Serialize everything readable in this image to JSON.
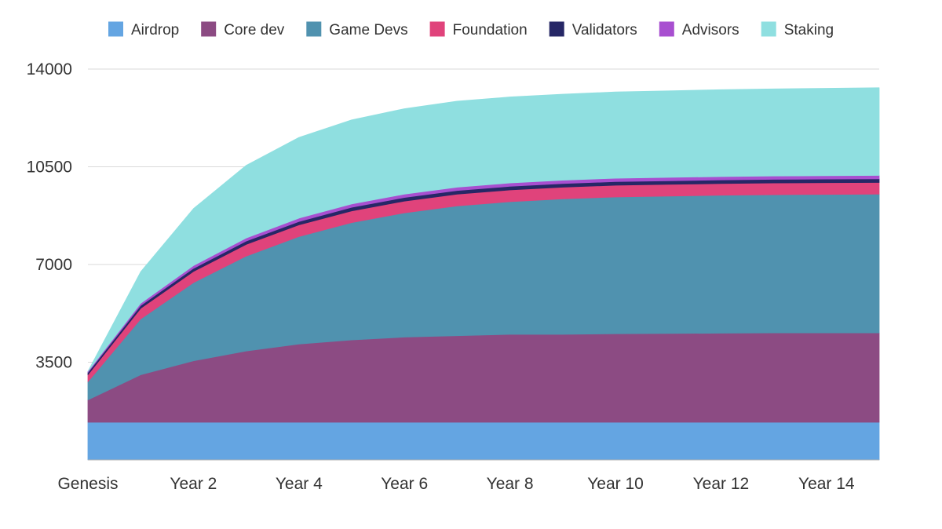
{
  "chart_data": {
    "type": "area",
    "stacked": true,
    "title": "",
    "xlabel": "",
    "ylabel": "",
    "ylim": [
      0,
      14000
    ],
    "yticks": [
      3500,
      7000,
      10500,
      14000
    ],
    "xtick_labels": [
      "Genesis",
      "Year 2",
      "Year 4",
      "Year 6",
      "Year 8",
      "Year 10",
      "Year 12",
      "Year 14"
    ],
    "x": [
      "Genesis",
      "Year 1",
      "Year 2",
      "Year 3",
      "Year 4",
      "Year 5",
      "Year 6",
      "Year 7",
      "Year 8",
      "Year 9",
      "Year 10",
      "Year 11",
      "Year 12",
      "Year 13",
      "Year 14",
      "Year 15"
    ],
    "grid": true,
    "legend_position": "top",
    "series": [
      {
        "name": "Airdrop",
        "color": "#64a5e2",
        "values": [
          1350,
          1350,
          1350,
          1350,
          1350,
          1350,
          1350,
          1350,
          1350,
          1350,
          1350,
          1350,
          1350,
          1350,
          1350,
          1350
        ]
      },
      {
        "name": "Core dev",
        "color": "#8c4b83",
        "values": [
          800,
          1700,
          2200,
          2550,
          2800,
          2950,
          3050,
          3100,
          3150,
          3150,
          3170,
          3180,
          3190,
          3200,
          3200,
          3200
        ]
      },
      {
        "name": "Game Devs",
        "color": "#5092af",
        "values": [
          650,
          2000,
          2800,
          3400,
          3850,
          4200,
          4450,
          4650,
          4750,
          4850,
          4900,
          4920,
          4940,
          4950,
          4960,
          4970
        ]
      },
      {
        "name": "Foundation",
        "color": "#e0437b",
        "values": [
          250,
          380,
          400,
          420,
          420,
          420,
          420,
          420,
          420,
          420,
          420,
          420,
          420,
          420,
          420,
          420
        ]
      },
      {
        "name": "Validators",
        "color": "#262766",
        "values": [
          80,
          100,
          110,
          120,
          120,
          130,
          130,
          130,
          130,
          130,
          130,
          130,
          130,
          130,
          130,
          130
        ]
      },
      {
        "name": "Advisors",
        "color": "#a84fd0",
        "values": [
          40,
          80,
          100,
          110,
          120,
          120,
          120,
          120,
          120,
          120,
          120,
          120,
          120,
          120,
          120,
          120
        ]
      },
      {
        "name": "Staking",
        "color": "#8fdfe0",
        "values": [
          0,
          1130,
          2040,
          2600,
          2890,
          3010,
          3060,
          3080,
          3080,
          3080,
          3090,
          3100,
          3110,
          3120,
          3130,
          3140
        ]
      }
    ]
  }
}
